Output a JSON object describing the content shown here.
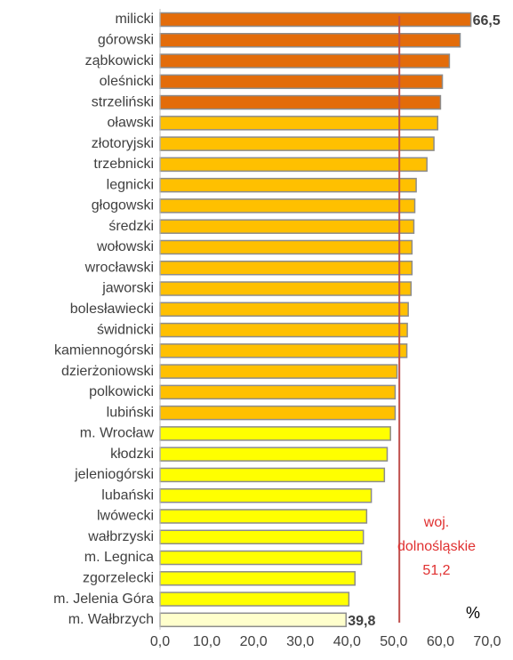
{
  "chart_data": {
    "type": "bar",
    "orientation": "horizontal",
    "categories": [
      "milicki",
      "górowski",
      "ząbkowicki",
      "oleśnicki",
      "strzeliński",
      "oławski",
      "złotoryjski",
      "trzebnicki",
      "legnicki",
      "głogowski",
      "średzki",
      "wołowski",
      "wrocławski",
      "jaworski",
      "bolesławiecki",
      "świdnicki",
      "kamiennogórski",
      "dzierżoniowski",
      "polkowicki",
      "lubiński",
      "m. Wrocław",
      "kłodzki",
      "jeleniogórski",
      "lubański",
      "lwówecki",
      "wałbrzyski",
      "m. Legnica",
      "zgorzelecki",
      "m. Jelenia Góra",
      "m. Wałbrzych"
    ],
    "values": [
      66.5,
      64.2,
      61.9,
      60.4,
      60.0,
      59.4,
      58.6,
      57.1,
      54.8,
      54.5,
      54.3,
      53.9,
      53.9,
      53.7,
      53.1,
      52.9,
      52.8,
      50.7,
      50.3,
      50.3,
      49.3,
      48.6,
      48.0,
      45.2,
      44.2,
      43.5,
      43.1,
      41.7,
      40.4,
      39.8
    ],
    "value_labels": [
      "66,5",
      null,
      null,
      null,
      null,
      null,
      null,
      null,
      null,
      null,
      null,
      null,
      null,
      null,
      null,
      null,
      null,
      null,
      null,
      null,
      null,
      null,
      null,
      null,
      null,
      null,
      null,
      null,
      null,
      "39,8"
    ],
    "colors": [
      "#e36c0a",
      "#e36c0a",
      "#e36c0a",
      "#e36c0a",
      "#e36c0a",
      "#ffc000",
      "#ffc000",
      "#ffc000",
      "#ffc000",
      "#ffc000",
      "#ffc000",
      "#ffc000",
      "#ffc000",
      "#ffc000",
      "#ffc000",
      "#ffc000",
      "#ffc000",
      "#ffc000",
      "#ffc000",
      "#ffc000",
      "#ffff00",
      "#ffff00",
      "#ffff00",
      "#ffff00",
      "#ffff00",
      "#ffff00",
      "#ffff00",
      "#ffff00",
      "#ffff00",
      "#ffffcc"
    ],
    "xlim": [
      0,
      70
    ],
    "xticks": [
      {
        "value": 0,
        "label": "0,0"
      },
      {
        "value": 10,
        "label": "10,0"
      },
      {
        "value": 20,
        "label": "20,0"
      },
      {
        "value": 30,
        "label": "30,0"
      },
      {
        "value": 40,
        "label": "40,0"
      },
      {
        "value": 50,
        "label": "50,0"
      },
      {
        "value": 60,
        "label": "60,0"
      },
      {
        "value": 70,
        "label": "70,0"
      }
    ],
    "reference_line": {
      "value": 51.2,
      "label_lines": [
        "woj.",
        "dolnośląskie"
      ],
      "value_label": "51,2",
      "color": "#c0504d"
    },
    "unit": "%"
  }
}
